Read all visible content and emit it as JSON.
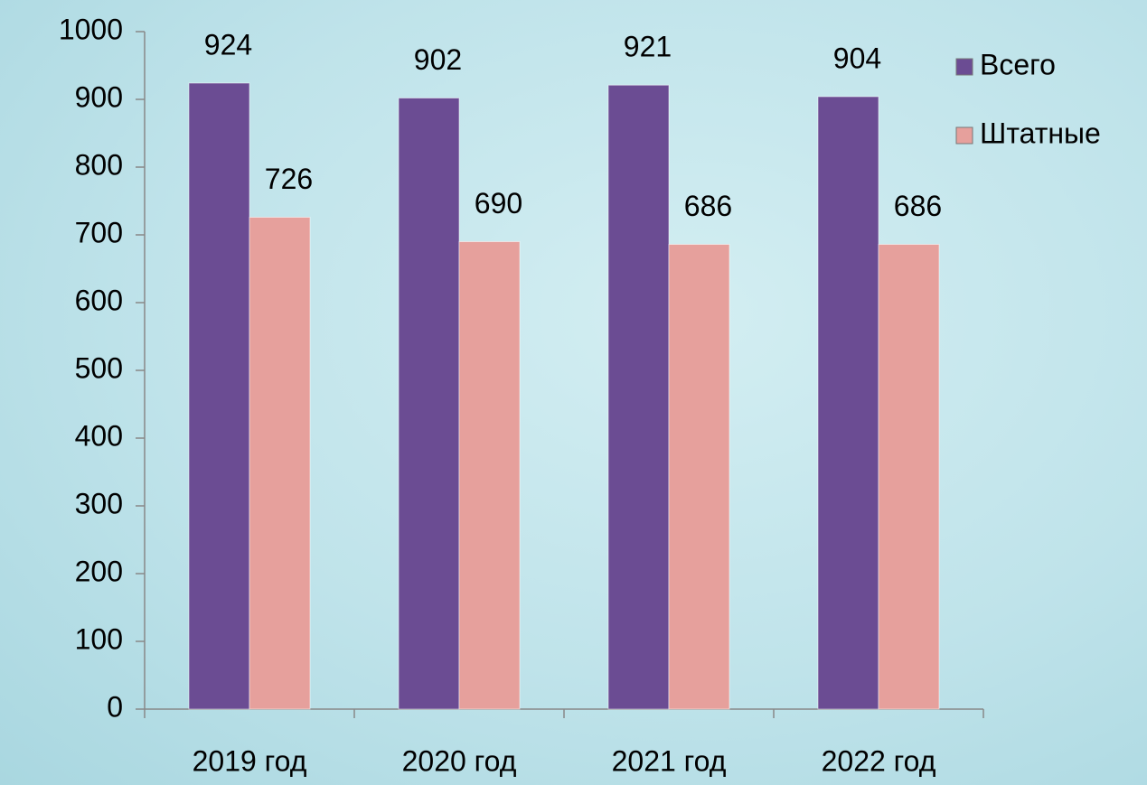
{
  "chart_data": {
    "type": "bar",
    "categories": [
      "2019 год",
      "2020 год",
      "2021 год",
      "2022 год"
    ],
    "series": [
      {
        "name": "Всего",
        "color": "#6b4c93",
        "values": [
          924,
          902,
          921,
          904
        ]
      },
      {
        "name": "Штатные",
        "color": "#e6a09c",
        "values": [
          726,
          690,
          686,
          686
        ]
      }
    ],
    "ylim": [
      0,
      1000
    ],
    "yticks": [
      0,
      100,
      200,
      300,
      400,
      500,
      600,
      700,
      800,
      900,
      1000
    ],
    "grid": false,
    "legend": "right"
  }
}
